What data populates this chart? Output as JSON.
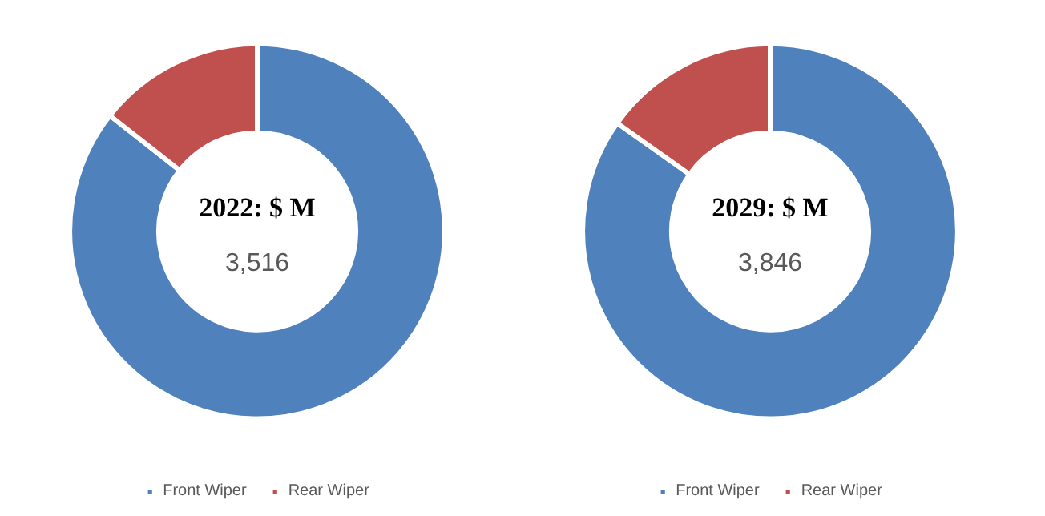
{
  "chart_data": [
    {
      "type": "donut",
      "categories": [
        "Front Wiper",
        "Rear Wiper"
      ],
      "values": [
        85.6,
        14.4
      ],
      "colors": [
        "#4f81bd",
        "#c0504d"
      ],
      "annotations": [
        "2022: $ M",
        "3,516"
      ],
      "legend": "bottom"
    },
    {
      "type": "donut",
      "categories": [
        "Front Wiper",
        "Rear Wiper"
      ],
      "values": [
        84.8,
        15.2
      ],
      "colors": [
        "#4f81bd",
        "#c0504d"
      ],
      "annotations": [
        "2029: $ M",
        "3,846"
      ],
      "legend": "bottom"
    }
  ]
}
